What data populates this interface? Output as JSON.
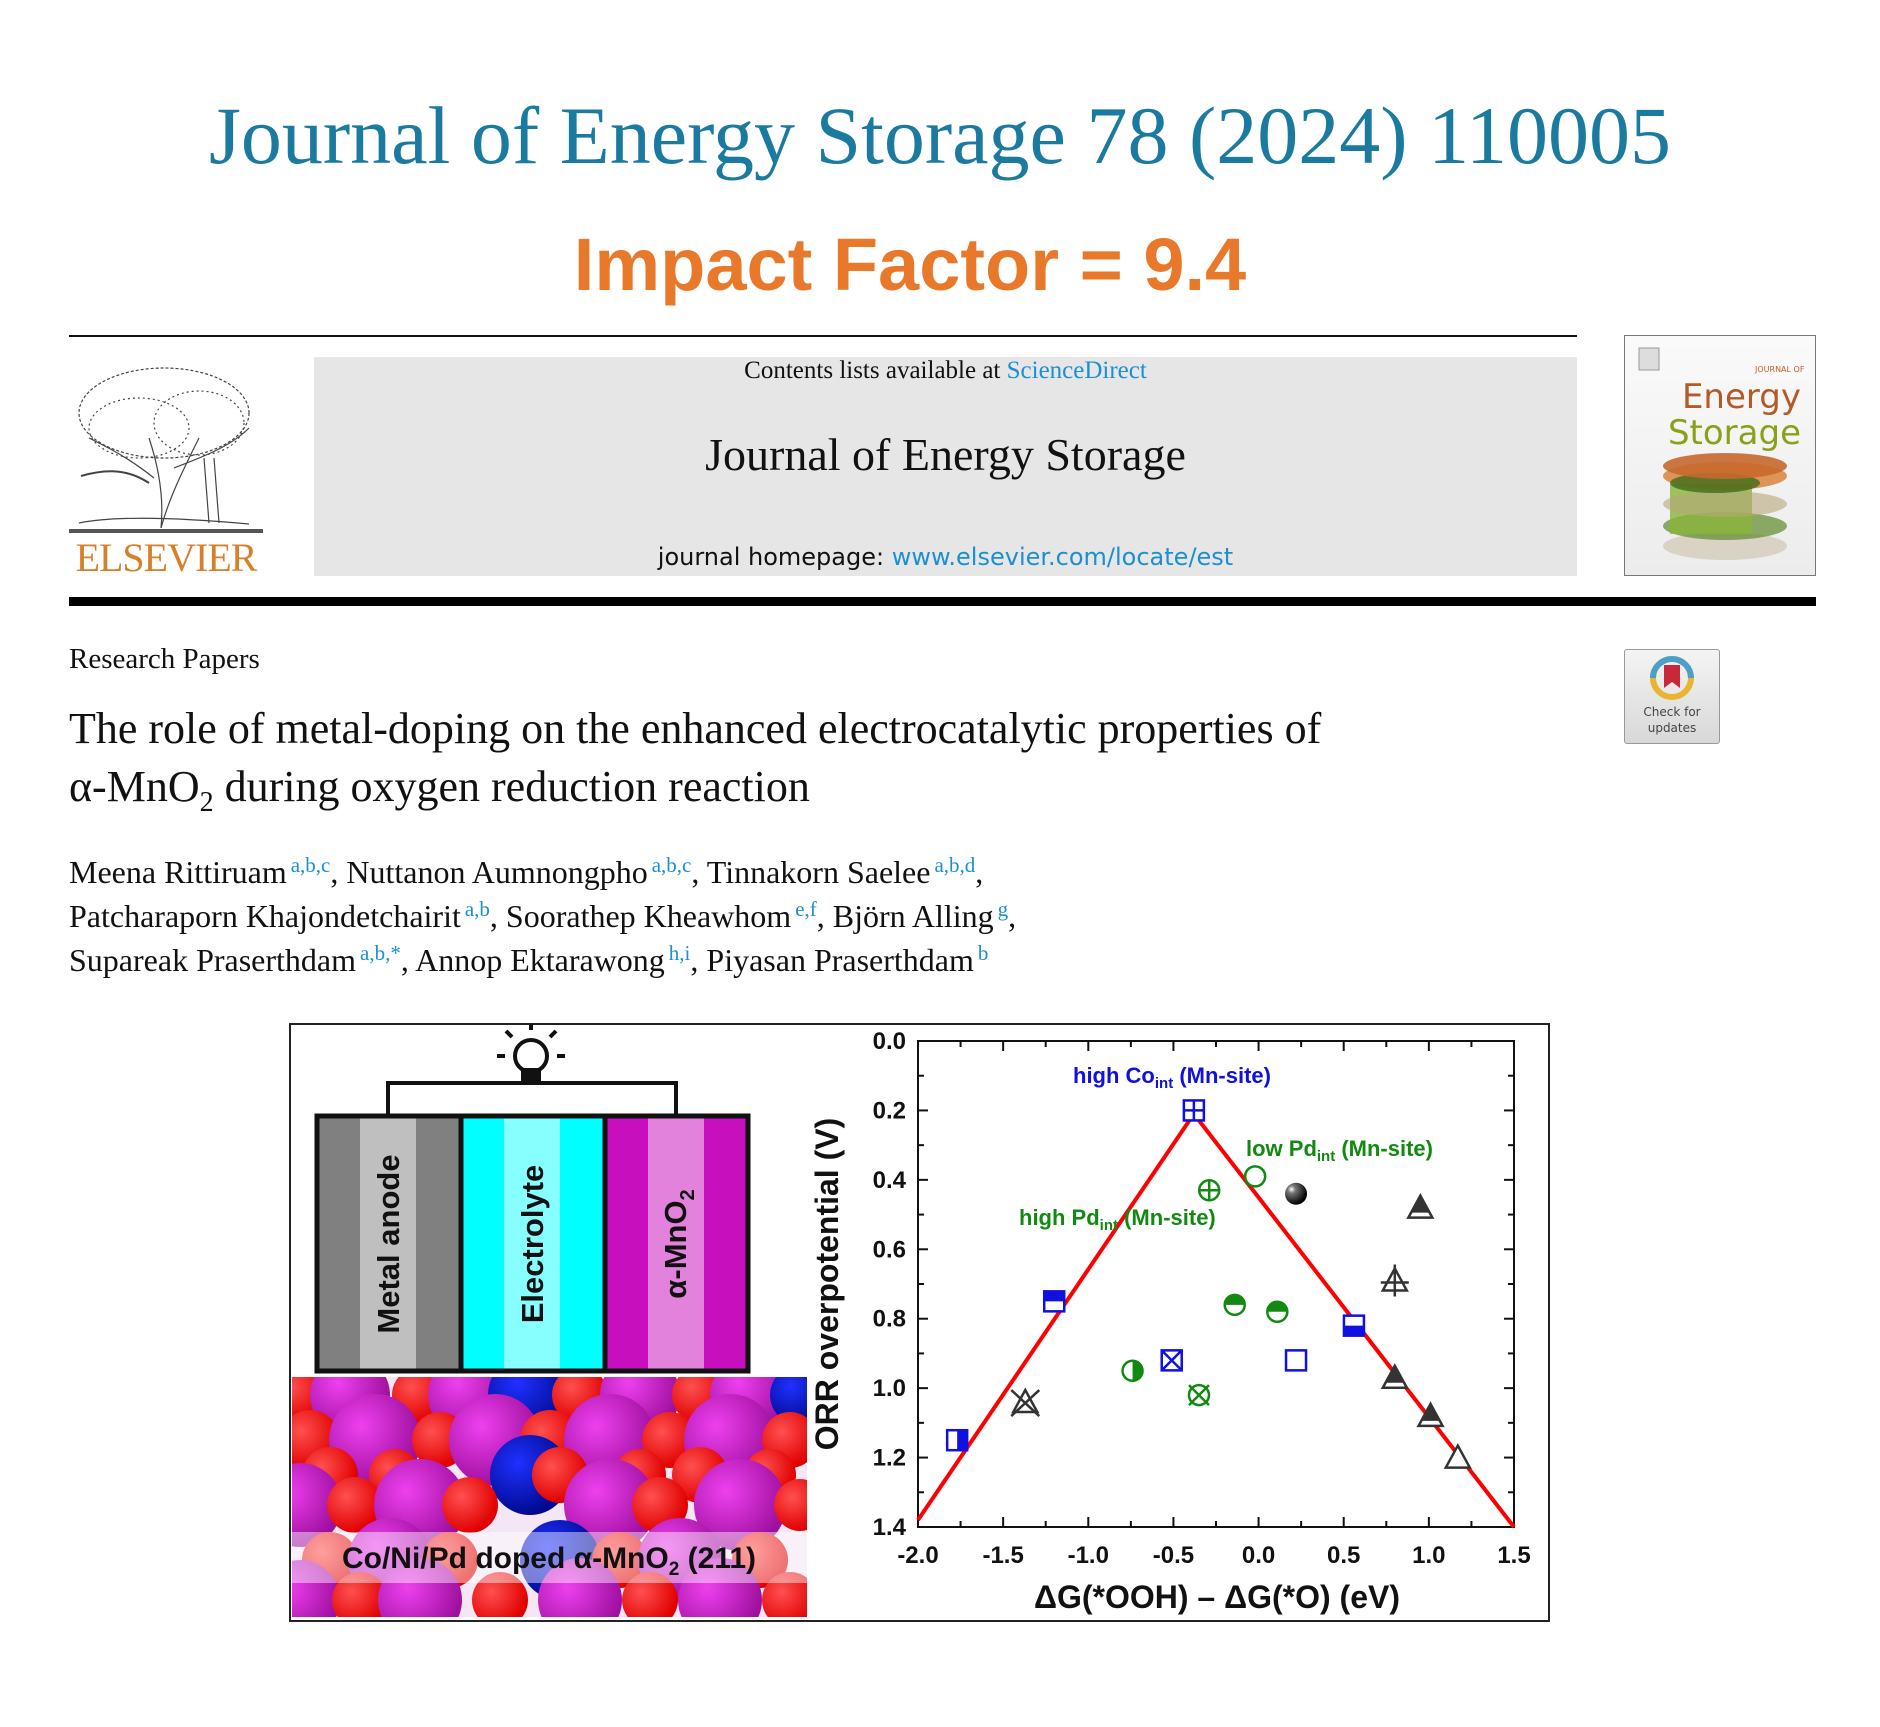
{
  "banner": {
    "journal_citation": "Journal of Energy Storage 78 (2024) 110005",
    "impact_factor": "Impact Factor = 9.4"
  },
  "masthead": {
    "publisher": "ELSEVIER",
    "contents_prefix": "Contents lists available at ",
    "contents_link": "ScienceDirect",
    "journal_title": "Journal of Energy Storage",
    "homepage_prefix": "journal homepage: ",
    "homepage_link": "www.elsevier.com/locate/est",
    "cover": {
      "line1": "JOURNAL OF",
      "line2": "Energy",
      "line3": "Storage"
    }
  },
  "check_updates": {
    "line1": "Check for",
    "line2": "updates"
  },
  "article": {
    "section": "Research Papers",
    "title_line1": "The role of metal-doping on the enhanced electrocatalytic properties of",
    "title_line2_pre": "α-MnO",
    "title_line2_sub": "2",
    "title_line2_post": " during oxygen reduction reaction",
    "authors": [
      {
        "name": "Meena Rittiruam",
        "sup": "a,b,c",
        "sep": ", "
      },
      {
        "name": "Nuttanon Aumnongpho",
        "sup": "a,b,c",
        "sep": ", "
      },
      {
        "name": "Tinnakorn Saelee",
        "sup": "a,b,d",
        "sep": ","
      },
      {
        "name": "Patcharaporn Khajondetchairit",
        "sup": "a,b",
        "sep": ", "
      },
      {
        "name": "Soorathep Kheawhom",
        "sup": "e,f",
        "sep": ", "
      },
      {
        "name": "Björn Alling",
        "sup": "g",
        "sep": ","
      },
      {
        "name": "Supareak Praserthdam",
        "sup": "a,b,*",
        "sep": ", "
      },
      {
        "name": "Annop Ektarawong",
        "sup": "h,i",
        "sep": ", "
      },
      {
        "name": "Piyasan Praserthdam",
        "sup": "b",
        "sep": ""
      }
    ]
  },
  "graphical_abstract": {
    "cell_layers": [
      "Metal anode",
      "Electrolyte",
      "α-MnO"
    ],
    "cell_layer_sub": "2",
    "surface_label_pre": "Co/Ni/Pd doped α-MnO",
    "surface_label_sub": "2",
    "surface_label_post": " (211)",
    "colors": {
      "anode": "#808080",
      "electrolyte": "#00ffff",
      "cathode": "#c80fbe",
      "oxygen": "#ff0000",
      "manganese": "#c81ec8",
      "dopant": "#0a14c8"
    }
  },
  "chart_data": {
    "type": "scatter",
    "xlabel": "ΔG(*OOH) – ΔG(*O) (eV)",
    "ylabel": "ORR overpotential (V)",
    "xlim": [
      -2.0,
      1.5
    ],
    "ylim": [
      1.4,
      0.0
    ],
    "y_inverted": true,
    "x_ticks": [
      "-2.0",
      "-1.5",
      "-1.0",
      "-0.5",
      "0.0",
      "0.5",
      "1.0",
      "1.5"
    ],
    "y_ticks": [
      "0.0",
      "0.2",
      "0.4",
      "0.6",
      "0.8",
      "1.0",
      "1.2",
      "1.4"
    ],
    "grid": false,
    "annotations": [
      {
        "pre": "high Co",
        "sub": "int",
        "post": " (Mn-site)",
        "color": "#1010e0"
      },
      {
        "pre": "low Pd",
        "sub": "int",
        "post": " (Mn-site)",
        "color": "#128a12"
      },
      {
        "pre": "high Pd",
        "sub": "int",
        "post": " (Mn-site)",
        "color": "#128a12"
      }
    ],
    "volcano_line": {
      "color": "#ff0000",
      "points": [
        [
          -2.0,
          1.38
        ],
        [
          -0.38,
          0.21
        ],
        [
          1.5,
          1.4
        ]
      ]
    },
    "points": [
      {
        "x": -0.38,
        "y": 0.2,
        "symbol": "square-plus",
        "color": "#1010e0"
      },
      {
        "x": -1.2,
        "y": 0.75,
        "symbol": "square-half-top",
        "color": "#1010e0"
      },
      {
        "x": -1.77,
        "y": 1.15,
        "symbol": "square-half-right",
        "color": "#1010e0"
      },
      {
        "x": -0.51,
        "y": 0.92,
        "symbol": "square-x",
        "color": "#1010e0"
      },
      {
        "x": 0.22,
        "y": 0.92,
        "symbol": "square-open",
        "color": "#1010e0"
      },
      {
        "x": 0.56,
        "y": 0.82,
        "symbol": "square-half-bottom",
        "color": "#1010e0"
      },
      {
        "x": -0.02,
        "y": 0.39,
        "symbol": "circle-open",
        "color": "#128a12"
      },
      {
        "x": -0.29,
        "y": 0.43,
        "symbol": "circle-plus",
        "color": "#128a12"
      },
      {
        "x": -0.14,
        "y": 0.76,
        "symbol": "circle-half-top",
        "color": "#128a12"
      },
      {
        "x": 0.11,
        "y": 0.78,
        "symbol": "circle-half-top",
        "color": "#128a12"
      },
      {
        "x": -0.74,
        "y": 0.95,
        "symbol": "circle-half-right",
        "color": "#128a12"
      },
      {
        "x": -0.35,
        "y": 1.02,
        "symbol": "circle-x",
        "color": "#128a12"
      },
      {
        "x": 0.22,
        "y": 0.44,
        "symbol": "sphere",
        "color": "#000000"
      },
      {
        "x": 0.95,
        "y": 0.48,
        "symbol": "triangle-half-top",
        "color": "#333333"
      },
      {
        "x": 0.8,
        "y": 0.69,
        "symbol": "triangle-plus",
        "color": "#333333"
      },
      {
        "x": -1.37,
        "y": 1.04,
        "symbol": "triangle-x",
        "color": "#333333"
      },
      {
        "x": 0.8,
        "y": 0.97,
        "symbol": "triangle-half-top",
        "color": "#333333"
      },
      {
        "x": 1.01,
        "y": 1.08,
        "symbol": "triangle-half-top",
        "color": "#333333"
      },
      {
        "x": 1.17,
        "y": 1.2,
        "symbol": "triangle-open",
        "color": "#333333"
      }
    ]
  }
}
